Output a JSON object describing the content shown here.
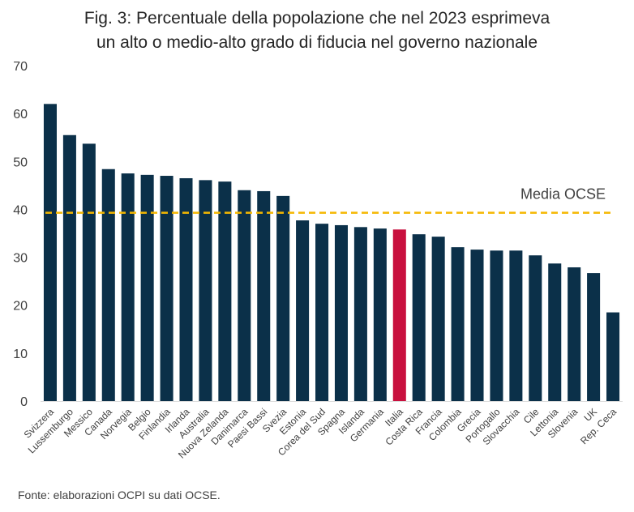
{
  "title_lines": [
    "Fig. 3: Percentuale della popolazione che nel 2023 esprimeva",
    "un alto o medio-alto grado di fiducia nel governo nazionale"
  ],
  "source": "Fonte: elaborazioni OCPI su dati OCSE.",
  "colors": {
    "bar": "#0b3049",
    "highlight": "#c8103e",
    "average_line": "#f5b800"
  },
  "chart_data": {
    "type": "bar",
    "title": "Fig. 3: Percentuale della popolazione che nel 2023 esprimeva un alto o medio-alto grado di fiducia nel governo nazionale",
    "xlabel": "",
    "ylabel": "",
    "ylim": [
      0,
      70
    ],
    "yticks": [
      0,
      10,
      20,
      30,
      40,
      50,
      60,
      70
    ],
    "grid": false,
    "categories": [
      "Svizzera",
      "Lussemburgo",
      "Messico",
      "Canada",
      "Norvegia",
      "Belgio",
      "Finlandia",
      "Irlanda",
      "Australia",
      "Nuova Zelanda",
      "Danimarca",
      "Paesi Bassi",
      "Svezia",
      "Estonia",
      "Corea del Sud",
      "Spagna",
      "Islanda",
      "Germania",
      "Italia",
      "Costa Rica",
      "Francia",
      "Colombia",
      "Grecia",
      "Portogallo",
      "Slovacchia",
      "Cile",
      "Lettonia",
      "Slovenia",
      "UK",
      "Rep. Ceca"
    ],
    "values": [
      62,
      55.5,
      53.7,
      48.4,
      47.5,
      47.2,
      47,
      46.5,
      46.1,
      45.8,
      44,
      43.8,
      42.8,
      37.7,
      37,
      36.7,
      36.3,
      36,
      35.8,
      34.8,
      34.3,
      32.1,
      31.6,
      31.4,
      31.4,
      30.4,
      28.7,
      27.9,
      26.7,
      18.5
    ],
    "highlight": "Italia",
    "average": {
      "label": "Media OCSE",
      "value": 39.3
    }
  }
}
